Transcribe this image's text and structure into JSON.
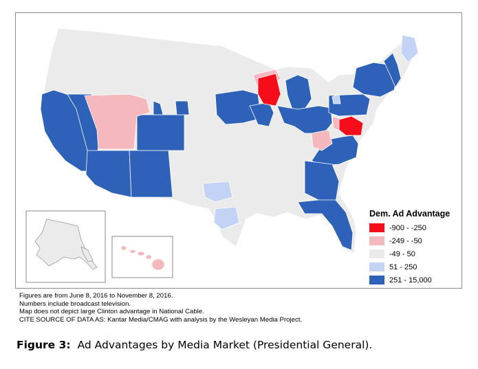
{
  "legend": {
    "title": "Dem. Ad Advantage",
    "items": [
      {
        "label": "-900 - -250",
        "color": "#f70d1a"
      },
      {
        "label": "-249 - -50",
        "color": "#f5b8bd"
      },
      {
        "label": "-49 - 50",
        "color": "#ebebeb"
      },
      {
        "label": "51 - 250",
        "color": "#c3d3f5"
      },
      {
        "label": "251 - 15,000",
        "color": "#2e62b9"
      }
    ]
  },
  "notes": [
    "Figures are from June 8, 2016 to November 8, 2016.",
    "Numbers include broadcast television.",
    "Map does not depict large Clinton advantage in National Cable.",
    "CITE SOURCE OF DATA AS:  Kantar Media/CMAG with analysis by the Wesleyan Media Project."
  ],
  "caption": {
    "label": "Figure 3:",
    "text": "Ad Advantages by Media Market (Presidential General)."
  },
  "colors": {
    "strong_rep": "#f70d1a",
    "lean_rep": "#f5b8bd",
    "neutral": "#ebebeb",
    "lean_dem": "#c3d3f5",
    "strong_dem": "#2e62b9",
    "border": "#ffffff"
  }
}
